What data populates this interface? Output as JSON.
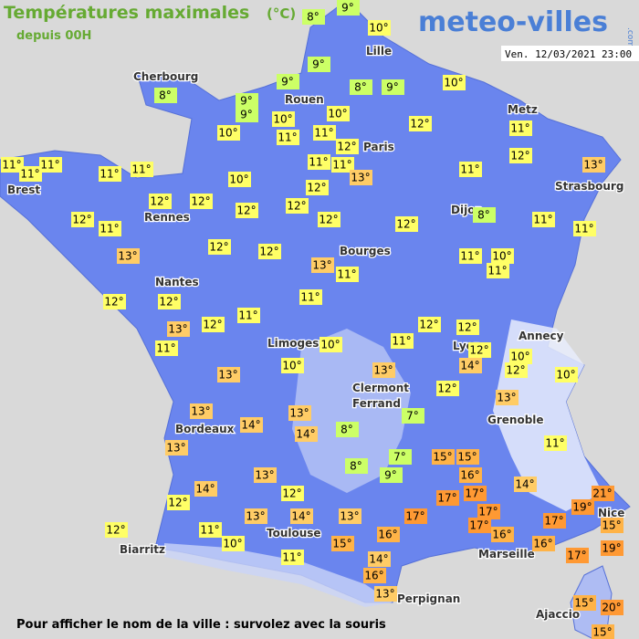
{
  "header": {
    "title": "Températures maximales",
    "unit": "(°C)",
    "subtitle": "depuis 00H",
    "logo": "meteo-villes",
    "logo_suffix": ".com",
    "timestamp": "Ven. 12/03/2021 23:00"
  },
  "cities": [
    "Cherbourg",
    "Lille",
    "Rouen",
    "Paris",
    "Metz",
    "Brest",
    "Strasbourg",
    "Rennes",
    "Dijon",
    "Bourges",
    "Nantes",
    "Annecy",
    "Limoges",
    "Lyon",
    "Clermont",
    "Ferrand",
    "Grenoble",
    "Bordeaux",
    "Nice",
    "Toulouse",
    "Marseille",
    "Biarritz",
    "Perpignan",
    "Ajaccio"
  ],
  "temperatures": [
    {
      "value": 8,
      "label": "8°"
    },
    {
      "value": 9,
      "label": "9°"
    },
    {
      "value": 10,
      "label": "10°"
    },
    {
      "value": 9,
      "label": "9°"
    },
    {
      "value": 8,
      "label": "8°"
    },
    {
      "value": 9,
      "label": "9°"
    },
    {
      "value": 8,
      "label": "8°"
    },
    {
      "value": 9,
      "label": "9°"
    },
    {
      "value": 10,
      "label": "10°"
    },
    {
      "value": 9,
      "label": "9°"
    },
    {
      "value": 9,
      "label": "9°"
    },
    {
      "value": 10,
      "label": "10°"
    },
    {
      "value": 10,
      "label": "10°"
    },
    {
      "value": 12,
      "label": "12°"
    },
    {
      "value": 11,
      "label": "11°"
    },
    {
      "value": 10,
      "label": "10°"
    },
    {
      "value": 11,
      "label": "11°"
    },
    {
      "value": 11,
      "label": "11°"
    },
    {
      "value": 12,
      "label": "12°"
    },
    {
      "value": 12,
      "label": "12°"
    },
    {
      "value": 11,
      "label": "11°"
    },
    {
      "value": 11,
      "label": "11°"
    },
    {
      "value": 11,
      "label": "11°"
    },
    {
      "value": 11,
      "label": "11°"
    },
    {
      "value": 11,
      "label": "11°"
    },
    {
      "value": 11,
      "label": "11°"
    },
    {
      "value": 11,
      "label": "11°"
    },
    {
      "value": 13,
      "label": "13°"
    },
    {
      "value": 11,
      "label": "11°"
    },
    {
      "value": 13,
      "label": "13°"
    },
    {
      "value": 10,
      "label": "10°"
    },
    {
      "value": 12,
      "label": "12°"
    },
    {
      "value": 12,
      "label": "12°"
    },
    {
      "value": 12,
      "label": "12°"
    },
    {
      "value": 12,
      "label": "12°"
    },
    {
      "value": 12,
      "label": "12°"
    },
    {
      "value": 12,
      "label": "12°"
    },
    {
      "value": 12,
      "label": "12°"
    },
    {
      "value": 12,
      "label": "12°"
    },
    {
      "value": 8,
      "label": "8°"
    },
    {
      "value": 11,
      "label": "11°"
    },
    {
      "value": 11,
      "label": "11°"
    },
    {
      "value": 11,
      "label": "11°"
    },
    {
      "value": 12,
      "label": "12°"
    },
    {
      "value": 12,
      "label": "12°"
    },
    {
      "value": 13,
      "label": "13°"
    },
    {
      "value": 11,
      "label": "11°"
    },
    {
      "value": 10,
      "label": "10°"
    },
    {
      "value": 11,
      "label": "11°"
    },
    {
      "value": 13,
      "label": "13°"
    },
    {
      "value": 11,
      "label": "11°"
    },
    {
      "value": 12,
      "label": "12°"
    },
    {
      "value": 12,
      "label": "12°"
    },
    {
      "value": 11,
      "label": "11°"
    },
    {
      "value": 11,
      "label": "11°"
    },
    {
      "value": 12,
      "label": "12°"
    },
    {
      "value": 13,
      "label": "13°"
    },
    {
      "value": 12,
      "label": "12°"
    },
    {
      "value": 12,
      "label": "12°"
    },
    {
      "value": 11,
      "label": "11°"
    },
    {
      "value": 10,
      "label": "10°"
    },
    {
      "value": 11,
      "label": "11°"
    },
    {
      "value": 12,
      "label": "12°"
    },
    {
      "value": 10,
      "label": "10°"
    },
    {
      "value": 14,
      "label": "14°"
    },
    {
      "value": 12,
      "label": "12°"
    },
    {
      "value": 10,
      "label": "10°"
    },
    {
      "value": 10,
      "label": "10°"
    },
    {
      "value": 13,
      "label": "13°"
    },
    {
      "value": 13,
      "label": "13°"
    },
    {
      "value": 12,
      "label": "12°"
    },
    {
      "value": 13,
      "label": "13°"
    },
    {
      "value": 13,
      "label": "13°"
    },
    {
      "value": 13,
      "label": "13°"
    },
    {
      "value": 7,
      "label": "7°"
    },
    {
      "value": 14,
      "label": "14°"
    },
    {
      "value": 8,
      "label": "8°"
    },
    {
      "value": 14,
      "label": "14°"
    },
    {
      "value": 13,
      "label": "13°"
    },
    {
      "value": 11,
      "label": "11°"
    },
    {
      "value": 7,
      "label": "7°"
    },
    {
      "value": 15,
      "label": "15°"
    },
    {
      "value": 15,
      "label": "15°"
    },
    {
      "value": 8,
      "label": "8°"
    },
    {
      "value": 9,
      "label": "9°"
    },
    {
      "value": 13,
      "label": "13°"
    },
    {
      "value": 16,
      "label": "16°"
    },
    {
      "value": 14,
      "label": "14°"
    },
    {
      "value": 14,
      "label": "14°"
    },
    {
      "value": 12,
      "label": "12°"
    },
    {
      "value": 17,
      "label": "17°"
    },
    {
      "value": 17,
      "label": "17°"
    },
    {
      "value": 21,
      "label": "21°"
    },
    {
      "value": 12,
      "label": "12°"
    },
    {
      "value": 19,
      "label": "19°"
    },
    {
      "value": 13,
      "label": "13°"
    },
    {
      "value": 14,
      "label": "14°"
    },
    {
      "value": 13,
      "label": "13°"
    },
    {
      "value": 17,
      "label": "17°"
    },
    {
      "value": 17,
      "label": "17°"
    },
    {
      "value": 17,
      "label": "17°"
    },
    {
      "value": 16,
      "label": "16°"
    },
    {
      "value": 17,
      "label": "17°"
    },
    {
      "value": 15,
      "label": "15°"
    },
    {
      "value": 12,
      "label": "12°"
    },
    {
      "value": 11,
      "label": "11°"
    },
    {
      "value": 16,
      "label": "16°"
    },
    {
      "value": 10,
      "label": "10°"
    },
    {
      "value": 15,
      "label": "15°"
    },
    {
      "value": 16,
      "label": "16°"
    },
    {
      "value": 19,
      "label": "19°"
    },
    {
      "value": 11,
      "label": "11°"
    },
    {
      "value": 17,
      "label": "17°"
    },
    {
      "value": 14,
      "label": "14°"
    },
    {
      "value": 16,
      "label": "16°"
    },
    {
      "value": 13,
      "label": "13°"
    },
    {
      "value": 15,
      "label": "15°"
    },
    {
      "value": 20,
      "label": "20°"
    },
    {
      "value": 15,
      "label": "15°"
    }
  ],
  "footer": "Pour afficher le nom de la ville : survolez avec la souris"
}
